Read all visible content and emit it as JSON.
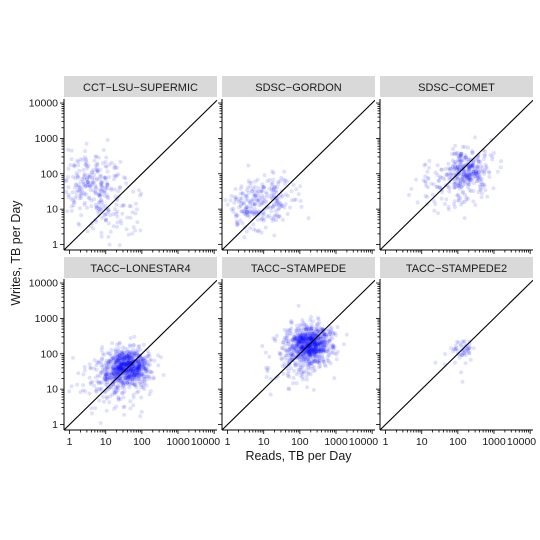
{
  "chart_data": {
    "type": "scatter",
    "xlabel": "Reads, TB per Day",
    "ylabel": "Writes, TB per Day",
    "x_scale": "log10",
    "y_scale": "log10",
    "xlim": [
      0.7,
      12000
    ],
    "ylim": [
      0.7,
      13000
    ],
    "x_ticks": [
      "1",
      "10",
      "100",
      "1000",
      "10000"
    ],
    "y_ticks": [
      "1",
      "10",
      "100",
      "1000",
      "10000"
    ],
    "point_color": "#0000ff",
    "point_opacity": 0.12,
    "reference_line": "y = x",
    "grid": false,
    "panels": [
      {
        "name": "CCT−LSU−SUPERMIC",
        "clusters": [
          {
            "n": 140,
            "cx": 6,
            "cy": 30,
            "sx": 0.45,
            "sy": 0.6
          },
          {
            "n": 90,
            "cx": 3,
            "cy": 60,
            "sx": 0.3,
            "sy": 0.4
          },
          {
            "n": 70,
            "cx": 15,
            "cy": 8,
            "sx": 0.4,
            "sy": 0.5
          }
        ]
      },
      {
        "name": "SDSC−GORDON",
        "clusters": [
          {
            "n": 170,
            "cx": 5,
            "cy": 12,
            "sx": 0.35,
            "sy": 0.35
          },
          {
            "n": 90,
            "cx": 20,
            "cy": 25,
            "sx": 0.35,
            "sy": 0.35
          }
        ]
      },
      {
        "name": "SDSC−COMET",
        "clusters": [
          {
            "n": 290,
            "cx": 180,
            "cy": 120,
            "sx": 0.3,
            "sy": 0.3
          },
          {
            "n": 90,
            "cx": 60,
            "cy": 45,
            "sx": 0.4,
            "sy": 0.4
          }
        ]
      },
      {
        "name": "TACC−LONESTAR4",
        "clusters": [
          {
            "n": 700,
            "cx": 40,
            "cy": 45,
            "sx": 0.3,
            "sy": 0.28
          },
          {
            "n": 160,
            "cx": 15,
            "cy": 15,
            "sx": 0.4,
            "sy": 0.4
          }
        ]
      },
      {
        "name": "TACC−STAMPEDE",
        "clusters": [
          {
            "n": 700,
            "cx": 200,
            "cy": 190,
            "sx": 0.3,
            "sy": 0.26
          },
          {
            "n": 160,
            "cx": 70,
            "cy": 70,
            "sx": 0.4,
            "sy": 0.4
          }
        ]
      },
      {
        "name": "TACC−STAMPEDE2",
        "clusters": [
          {
            "n": 40,
            "cx": 150,
            "cy": 140,
            "sx": 0.15,
            "sy": 0.12
          },
          {
            "n": 12,
            "cx": 60,
            "cy": 60,
            "sx": 0.3,
            "sy": 0.3
          }
        ]
      }
    ]
  }
}
